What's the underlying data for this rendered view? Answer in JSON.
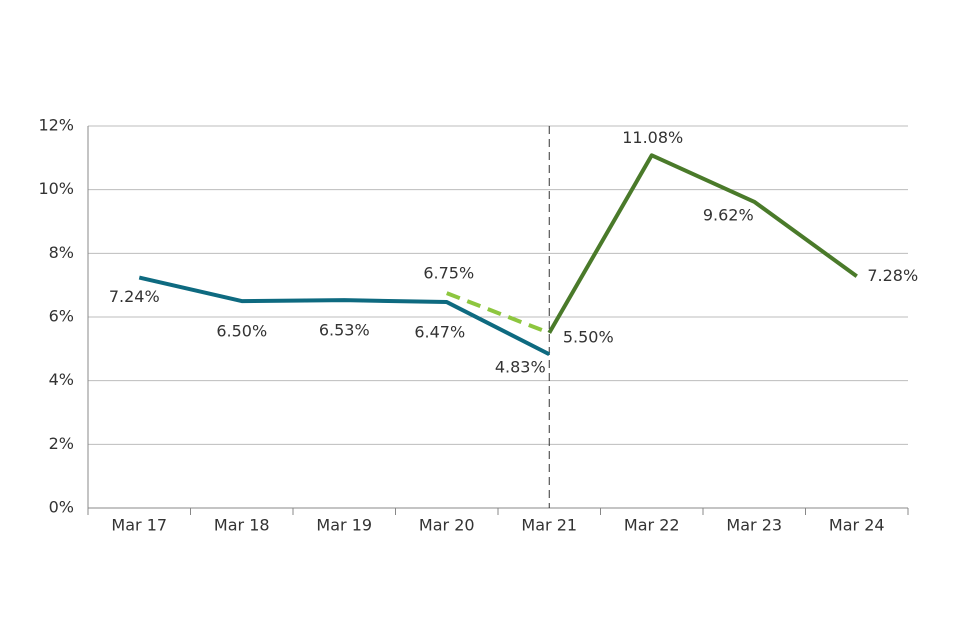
{
  "chart_data": {
    "type": "line",
    "categories": [
      "Mar 17",
      "Mar 18",
      "Mar 19",
      "Mar 20",
      "Mar 21",
      "Mar 22",
      "Mar 23",
      "Mar 24"
    ],
    "series": [
      {
        "color": "#0e6a80",
        "dashed": false,
        "values": [
          7.24,
          6.5,
          6.53,
          6.47,
          4.83,
          null,
          null,
          null
        ],
        "value_labels": [
          "7.24%",
          "6.50%",
          "6.53%",
          "6.47%",
          "4.83%",
          null,
          null,
          null
        ]
      },
      {
        "color": "#8dc63f",
        "dashed": true,
        "values": [
          null,
          null,
          null,
          6.75,
          5.5,
          null,
          null,
          null
        ],
        "value_labels": [
          null,
          null,
          null,
          "6.75%",
          null,
          null,
          null,
          null
        ]
      },
      {
        "color": "#4a7a2a",
        "dashed": false,
        "values": [
          null,
          null,
          null,
          null,
          5.5,
          11.08,
          9.62,
          7.28
        ],
        "value_labels": [
          null,
          null,
          null,
          null,
          "5.50%",
          "11.08%",
          "9.62%",
          "7.28%"
        ]
      }
    ],
    "ylim": [
      0,
      12
    ],
    "yticks": [
      {
        "value": 0,
        "label": "0%"
      },
      {
        "value": 2,
        "label": "2%"
      },
      {
        "value": 4,
        "label": "4%"
      },
      {
        "value": 6,
        "label": "6%"
      },
      {
        "value": 8,
        "label": "8%"
      },
      {
        "value": 10,
        "label": "10%"
      },
      {
        "value": 12,
        "label": "12%"
      }
    ],
    "grid": true
  }
}
